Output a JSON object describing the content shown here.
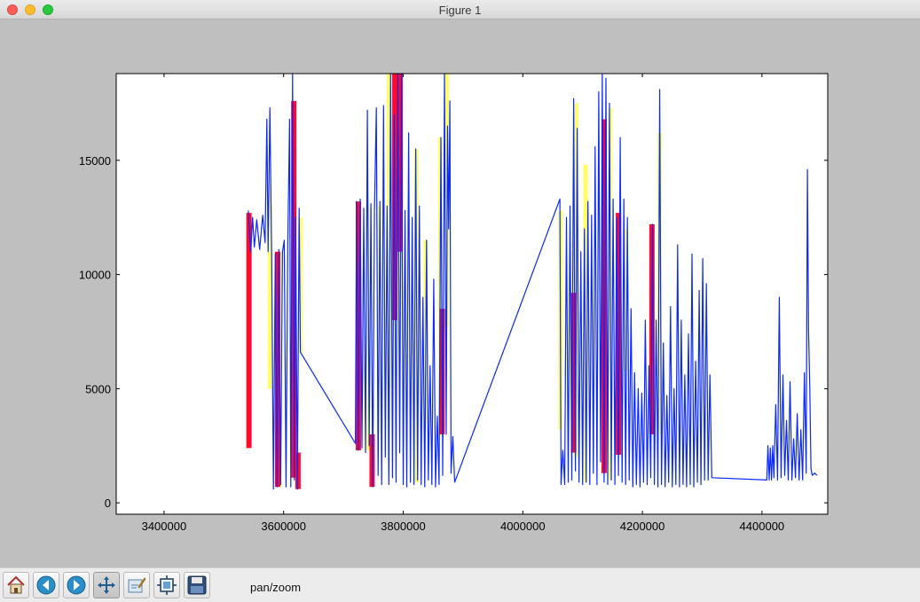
{
  "window": {
    "title": "Figure 1"
  },
  "toolbar": {
    "buttons": [
      {
        "name": "home",
        "icon": "home-icon"
      },
      {
        "name": "back",
        "icon": "back-arrow-icon"
      },
      {
        "name": "forward",
        "icon": "forward-arrow-icon"
      },
      {
        "name": "pan",
        "icon": "pan-move-icon",
        "active": true
      },
      {
        "name": "zoom",
        "icon": "zoom-rect-icon"
      },
      {
        "name": "subplots",
        "icon": "subplots-config-icon"
      },
      {
        "name": "save",
        "icon": "floppy-save-icon"
      }
    ],
    "status": "pan/zoom"
  },
  "chart_data": {
    "type": "line",
    "title": "",
    "xlabel": "",
    "ylabel": "",
    "xlim": [
      3320000,
      4510000
    ],
    "ylim": [
      -500,
      18800
    ],
    "xticks": [
      3400000,
      3600000,
      3800000,
      4000000,
      4200000,
      4400000
    ],
    "xtick_labels": [
      "3400000",
      "3600000",
      "3800000",
      "4000000",
      "4200000",
      "4400000"
    ],
    "yticks": [
      0,
      5000,
      10000,
      15000
    ],
    "ytick_labels": [
      "0",
      "5000",
      "10000",
      "15000"
    ],
    "grid": false,
    "legend": "none",
    "colors": {
      "line": "#0a28ff",
      "range_a": "#ffff66",
      "range_b": "#ff0a2a"
    },
    "series": [
      {
        "kind": "band",
        "color": "#ffff66",
        "segments": [
          {
            "x": 3577000,
            "y0": 5000,
            "y1": 13000
          },
          {
            "x": 3593000,
            "y0": 700,
            "y1": 11000
          },
          {
            "x": 3628000,
            "y0": 6500,
            "y1": 12500
          },
          {
            "x": 3741000,
            "y0": 2300,
            "y1": 13000
          },
          {
            "x": 3760000,
            "y0": 3000,
            "y1": 13000
          },
          {
            "x": 3776000,
            "y0": 5000,
            "y1": 18800
          },
          {
            "x": 3822000,
            "y0": 900,
            "y1": 15500
          },
          {
            "x": 3838000,
            "y0": 3500,
            "y1": 11500
          },
          {
            "x": 3862000,
            "y0": 2900,
            "y1": 16000
          },
          {
            "x": 3873000,
            "y0": 7700,
            "y1": 18800
          },
          {
            "x": 4063000,
            "y0": 3200,
            "y1": 12800
          },
          {
            "x": 4089000,
            "y0": 2000,
            "y1": 17500
          },
          {
            "x": 4105000,
            "y0": 900,
            "y1": 14800
          },
          {
            "x": 4146000,
            "y0": 1000,
            "y1": 17300
          },
          {
            "x": 4172000,
            "y0": 5800,
            "y1": 12000
          },
          {
            "x": 4229000,
            "y0": 3000,
            "y1": 16200
          }
        ]
      },
      {
        "kind": "band",
        "color": "#ff0a2a",
        "segments": [
          {
            "x": 3542000,
            "y0": 2400,
            "y1": 12700
          },
          {
            "x": 3590000,
            "y0": 700,
            "y1": 11000
          },
          {
            "x": 3617000,
            "y0": 1100,
            "y1": 17600
          },
          {
            "x": 3624000,
            "y0": 600,
            "y1": 2200
          },
          {
            "x": 3725000,
            "y0": 2300,
            "y1": 13200
          },
          {
            "x": 3748000,
            "y0": 700,
            "y1": 3000
          },
          {
            "x": 3786000,
            "y0": 8000,
            "y1": 18800
          },
          {
            "x": 3795000,
            "y0": 11000,
            "y1": 18800
          },
          {
            "x": 3865000,
            "y0": 3000,
            "y1": 8500
          },
          {
            "x": 4085000,
            "y0": 2200,
            "y1": 9200
          },
          {
            "x": 4136000,
            "y0": 1300,
            "y1": 16800
          },
          {
            "x": 4160000,
            "y0": 2100,
            "y1": 12700
          },
          {
            "x": 4216000,
            "y0": 3000,
            "y1": 12200
          }
        ]
      },
      {
        "kind": "line",
        "color": "#0a28ff",
        "points": [
          [
            3541000,
            12800
          ],
          [
            3545000,
            11000
          ],
          [
            3548000,
            12500
          ],
          [
            3551000,
            11200
          ],
          [
            3555000,
            12400
          ],
          [
            3560000,
            11100
          ],
          [
            3565000,
            12600
          ],
          [
            3569000,
            11400
          ],
          [
            3572000,
            16800
          ],
          [
            3574000,
            11000
          ],
          [
            3577000,
            17300
          ],
          [
            3580000,
            10800
          ],
          [
            3583000,
            600
          ],
          [
            3586000,
            10900
          ],
          [
            3589000,
            700
          ],
          [
            3592000,
            11100
          ],
          [
            3595000,
            800
          ],
          [
            3598000,
            11000
          ],
          [
            3601000,
            11500
          ],
          [
            3604000,
            700
          ],
          [
            3607000,
            11400
          ],
          [
            3610000,
            16800
          ],
          [
            3612000,
            700
          ],
          [
            3615000,
            18800
          ],
          [
            3618000,
            1000
          ],
          [
            3620000,
            12500
          ],
          [
            3623000,
            600
          ],
          [
            3626000,
            12900
          ],
          [
            3628000,
            6600
          ],
          [
            3720000,
            2600
          ],
          [
            3722000,
            13200
          ],
          [
            3725000,
            2300
          ],
          [
            3728000,
            13300
          ],
          [
            3731000,
            2400
          ],
          [
            3734000,
            12900
          ],
          [
            3737000,
            2200
          ],
          [
            3740000,
            17200
          ],
          [
            3743000,
            2500
          ],
          [
            3746000,
            13100
          ],
          [
            3749000,
            700
          ],
          [
            3752000,
            12800
          ],
          [
            3755000,
            17300
          ],
          [
            3758000,
            1200
          ],
          [
            3761000,
            13200
          ],
          [
            3764000,
            800
          ],
          [
            3767000,
            17400
          ],
          [
            3770000,
            2000
          ],
          [
            3773000,
            13000
          ],
          [
            3776000,
            800
          ],
          [
            3779000,
            18800
          ],
          [
            3782000,
            1100
          ],
          [
            3785000,
            17000
          ],
          [
            3788000,
            900
          ],
          [
            3791000,
            18800
          ],
          [
            3794000,
            2200
          ],
          [
            3797000,
            18800
          ],
          [
            3800000,
            800
          ],
          [
            3803000,
            12800
          ],
          [
            3806000,
            700
          ],
          [
            3809000,
            16200
          ],
          [
            3812000,
            900
          ],
          [
            3815000,
            12500
          ],
          [
            3818000,
            800
          ],
          [
            3821000,
            15500
          ],
          [
            3824000,
            1000
          ],
          [
            3827000,
            13000
          ],
          [
            3830000,
            800
          ],
          [
            3833000,
            9000
          ],
          [
            3836000,
            700
          ],
          [
            3839000,
            11500
          ],
          [
            3842000,
            1000
          ],
          [
            3845000,
            6000
          ],
          [
            3848000,
            800
          ],
          [
            3851000,
            9800
          ],
          [
            3854000,
            700
          ],
          [
            3857000,
            3800
          ],
          [
            3860000,
            800
          ],
          [
            3863000,
            16000
          ],
          [
            3866000,
            1200
          ],
          [
            3869000,
            18800
          ],
          [
            3872000,
            3000
          ],
          [
            3874000,
            16500
          ],
          [
            3876000,
            12000
          ],
          [
            3878000,
            17600
          ],
          [
            3880000,
            1300
          ],
          [
            3883000,
            2900
          ],
          [
            3886000,
            900
          ],
          [
            4062000,
            13300
          ],
          [
            4064000,
            800
          ],
          [
            4067000,
            2300
          ],
          [
            4070000,
            800
          ],
          [
            4073000,
            12500
          ],
          [
            4076000,
            900
          ],
          [
            4079000,
            13000
          ],
          [
            4082000,
            1000
          ],
          [
            4085000,
            17700
          ],
          [
            4088000,
            1400
          ],
          [
            4091000,
            16400
          ],
          [
            4094000,
            900
          ],
          [
            4097000,
            11000
          ],
          [
            4100000,
            800
          ],
          [
            4103000,
            12000
          ],
          [
            4106000,
            900
          ],
          [
            4109000,
            13200
          ],
          [
            4112000,
            800
          ],
          [
            4115000,
            12600
          ],
          [
            4118000,
            1300
          ],
          [
            4121000,
            15600
          ],
          [
            4124000,
            800
          ],
          [
            4127000,
            18000
          ],
          [
            4130000,
            1800
          ],
          [
            4133000,
            18800
          ],
          [
            4136000,
            900
          ],
          [
            4139000,
            18600
          ],
          [
            4142000,
            800
          ],
          [
            4145000,
            17500
          ],
          [
            4148000,
            1000
          ],
          [
            4151000,
            13300
          ],
          [
            4154000,
            800
          ],
          [
            4157000,
            12500
          ],
          [
            4160000,
            1200
          ],
          [
            4163000,
            16000
          ],
          [
            4166000,
            900
          ],
          [
            4169000,
            13300
          ],
          [
            4172000,
            800
          ],
          [
            4175000,
            12500
          ],
          [
            4178000,
            1000
          ],
          [
            4181000,
            8500
          ],
          [
            4184000,
            700
          ],
          [
            4187000,
            5700
          ],
          [
            4190000,
            800
          ],
          [
            4193000,
            5000
          ],
          [
            4196000,
            700
          ],
          [
            4199000,
            4800
          ],
          [
            4202000,
            900
          ],
          [
            4205000,
            8000
          ],
          [
            4208000,
            800
          ],
          [
            4211000,
            6000
          ],
          [
            4214000,
            1100
          ],
          [
            4217000,
            12200
          ],
          [
            4220000,
            800
          ],
          [
            4223000,
            8000
          ],
          [
            4226000,
            700
          ],
          [
            4229000,
            18100
          ],
          [
            4232000,
            800
          ],
          [
            4235000,
            7000
          ],
          [
            4238000,
            700
          ],
          [
            4241000,
            4700
          ],
          [
            4244000,
            900
          ],
          [
            4247000,
            8600
          ],
          [
            4250000,
            700
          ],
          [
            4253000,
            5000
          ],
          [
            4256000,
            800
          ],
          [
            4259000,
            11300
          ],
          [
            4262000,
            700
          ],
          [
            4265000,
            8000
          ],
          [
            4268000,
            800
          ],
          [
            4271000,
            5600
          ],
          [
            4274000,
            700
          ],
          [
            4277000,
            7400
          ],
          [
            4280000,
            800
          ],
          [
            4283000,
            10900
          ],
          [
            4286000,
            700
          ],
          [
            4289000,
            6200
          ],
          [
            4292000,
            900
          ],
          [
            4295000,
            9300
          ],
          [
            4298000,
            800
          ],
          [
            4301000,
            10700
          ],
          [
            4304000,
            1000
          ],
          [
            4307000,
            9600
          ],
          [
            4310000,
            1000
          ],
          [
            4313000,
            5600
          ],
          [
            4316000,
            1100
          ],
          [
            4408000,
            1000
          ],
          [
            4410000,
            2500
          ],
          [
            4412000,
            1000
          ],
          [
            4414000,
            2400
          ],
          [
            4416000,
            1000
          ],
          [
            4418000,
            2500
          ],
          [
            4420000,
            1100
          ],
          [
            4423000,
            4300
          ],
          [
            4426000,
            1000
          ],
          [
            4429000,
            9000
          ],
          [
            4432000,
            1100
          ],
          [
            4435000,
            5600
          ],
          [
            4438000,
            1200
          ],
          [
            4441000,
            3600
          ],
          [
            4444000,
            1000
          ],
          [
            4447000,
            5300
          ],
          [
            4450000,
            1000
          ],
          [
            4453000,
            2800
          ],
          [
            4456000,
            1100
          ],
          [
            4459000,
            3900
          ],
          [
            4462000,
            1000
          ],
          [
            4465000,
            3200
          ],
          [
            4468000,
            1000
          ],
          [
            4471000,
            5700
          ],
          [
            4474000,
            1300
          ],
          [
            4476000,
            14600
          ],
          [
            4478000,
            7500
          ],
          [
            4480000,
            5000
          ],
          [
            4482000,
            1500
          ],
          [
            4484000,
            1200
          ],
          [
            4488000,
            1300
          ],
          [
            4492000,
            1200
          ]
        ]
      }
    ]
  }
}
